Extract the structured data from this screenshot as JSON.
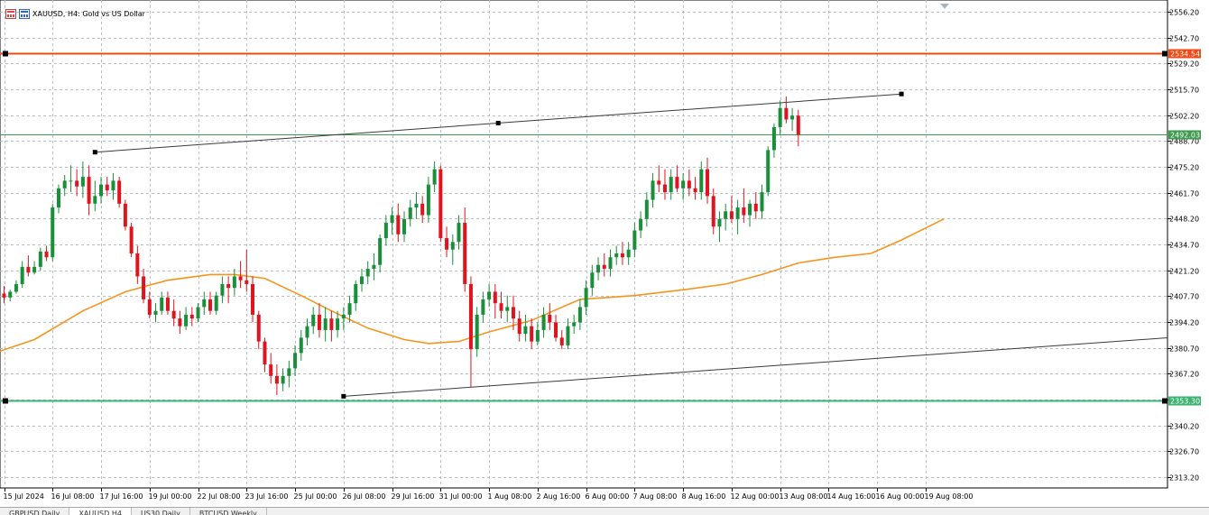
{
  "window": {
    "title": "XAUUSD, H4:  Gold vs US Dollar",
    "icons": [
      "chart-window-icon",
      "symbol-icon"
    ]
  },
  "tabs": [
    {
      "label": "GBPUSD,Daily",
      "active": false
    },
    {
      "label": "XAUUSD,H4",
      "active": true
    },
    {
      "label": "US30,Daily",
      "active": false
    },
    {
      "label": "BTCUSD,Weekly",
      "active": false
    }
  ],
  "chart_data": {
    "type": "candlestick",
    "symbol": "XAUUSD",
    "timeframe": "H4",
    "price_axis": {
      "ticks": [
        "2556.20",
        "2542.70",
        "2529.20",
        "2515.70",
        "2502.20",
        "2488.70",
        "2475.20",
        "2461.70",
        "2448.20",
        "2434.70",
        "2421.20",
        "2407.70",
        "2394.20",
        "2380.70",
        "2367.20",
        "2353.70",
        "2340.20",
        "2326.70",
        "2313.20"
      ],
      "range": [
        2307.5,
        2562.4
      ]
    },
    "time_axis": {
      "ticks": [
        "15 Jul 2024",
        "16 Jul 08:00",
        "17 Jul 16:00",
        "19 Jul 00:00",
        "22 Jul 08:00",
        "23 Jul 16:00",
        "25 Jul 00:00",
        "26 Jul 08:00",
        "29 Jul 16:00",
        "31 Jul 00:00",
        "1 Aug 08:00",
        "2 Aug 16:00",
        "6 Aug 00:00",
        "7 Aug 08:00",
        "8 Aug 16:00",
        "12 Aug 00:00",
        "13 Aug 08:00",
        "14 Aug 16:00",
        "16 Aug 00:00",
        "19 Aug 08:00"
      ],
      "bars_per_tick": 8
    },
    "grid": true,
    "colors": {
      "bull": "#1a8f3a",
      "bear": "#e0141e",
      "ma": "#f7941d",
      "resistance": "#f04a14",
      "support": "#3cb371",
      "trendline": "#3a3a3a",
      "bid_line": "#3f9a50"
    },
    "horizontal_lines": [
      {
        "name": "resistance",
        "price": 2534.54,
        "label": "2534.54"
      },
      {
        "name": "support",
        "price": 2353.3,
        "label": "2353.30"
      },
      {
        "name": "bid",
        "price": 2492.03,
        "label": "2492.03"
      }
    ],
    "trendlines": [
      {
        "name": "upper-channel",
        "points": [
          [
            15,
            2482.9
          ],
          [
            148,
            2513.3
          ]
        ]
      },
      {
        "name": "lower-channel",
        "points": [
          [
            56,
            2355.4
          ],
          [
            189,
            2385.3
          ]
        ]
      }
    ],
    "moving_average": {
      "name": "MA",
      "points": [
        [
          -3,
          2376.5
        ],
        [
          5,
          2385
        ],
        [
          13,
          2400
        ],
        [
          20,
          2410
        ],
        [
          27,
          2416
        ],
        [
          34,
          2419
        ],
        [
          38,
          2419
        ],
        [
          43,
          2417
        ],
        [
          49,
          2408
        ],
        [
          54,
          2400
        ],
        [
          60,
          2391
        ],
        [
          66,
          2385
        ],
        [
          70,
          2383
        ],
        [
          75,
          2384
        ],
        [
          80,
          2389
        ],
        [
          87,
          2395
        ],
        [
          95,
          2406
        ],
        [
          104,
          2408
        ],
        [
          112,
          2411
        ],
        [
          119,
          2414
        ],
        [
          125,
          2419
        ],
        [
          131,
          2425
        ],
        [
          137,
          2428
        ],
        [
          143,
          2430
        ],
        [
          148,
          2437
        ],
        [
          155,
          2448
        ]
      ]
    },
    "candles": [
      [
        2409,
        2413,
        2404,
        2407
      ],
      [
        2407,
        2411,
        2405,
        2410
      ],
      [
        2410,
        2416,
        2409,
        2414
      ],
      [
        2414,
        2426,
        2412,
        2423
      ],
      [
        2423,
        2429,
        2418,
        2420
      ],
      [
        2420,
        2426,
        2419,
        2423
      ],
      [
        2423,
        2433,
        2421,
        2431
      ],
      [
        2431,
        2434,
        2426,
        2428
      ],
      [
        2428,
        2456,
        2426,
        2454
      ],
      [
        2454,
        2466,
        2451,
        2464
      ],
      [
        2464,
        2471,
        2460,
        2468
      ],
      [
        2468,
        2476,
        2462,
        2468
      ],
      [
        2468,
        2474,
        2460,
        2465
      ],
      [
        2465,
        2478,
        2459,
        2470
      ],
      [
        2470,
        2476,
        2450,
        2456
      ],
      [
        2456,
        2468,
        2452,
        2460
      ],
      [
        2460,
        2470,
        2456,
        2466
      ],
      [
        2466,
        2470,
        2460,
        2463
      ],
      [
        2463,
        2472,
        2458,
        2468
      ],
      [
        2468,
        2470,
        2454,
        2456
      ],
      [
        2456,
        2458,
        2442,
        2444
      ],
      [
        2444,
        2446,
        2428,
        2430
      ],
      [
        2430,
        2434,
        2414,
        2418
      ],
      [
        2418,
        2422,
        2404,
        2406
      ],
      [
        2406,
        2410,
        2396,
        2398
      ],
      [
        2398,
        2404,
        2394,
        2400
      ],
      [
        2400,
        2410,
        2398,
        2407
      ],
      [
        2407,
        2410,
        2398,
        2400
      ],
      [
        2400,
        2406,
        2392,
        2396
      ],
      [
        2396,
        2400,
        2388,
        2392
      ],
      [
        2392,
        2402,
        2390,
        2398
      ],
      [
        2398,
        2402,
        2392,
        2396
      ],
      [
        2396,
        2404,
        2394,
        2402
      ],
      [
        2402,
        2410,
        2398,
        2406
      ],
      [
        2406,
        2410,
        2398,
        2400
      ],
      [
        2400,
        2410,
        2398,
        2408
      ],
      [
        2408,
        2418,
        2404,
        2414
      ],
      [
        2414,
        2418,
        2404,
        2412
      ],
      [
        2412,
        2422,
        2408,
        2418
      ],
      [
        2418,
        2426,
        2412,
        2416
      ],
      [
        2416,
        2432,
        2410,
        2414
      ],
      [
        2414,
        2418,
        2394,
        2398
      ],
      [
        2398,
        2400,
        2380,
        2384
      ],
      [
        2384,
        2386,
        2368,
        2372
      ],
      [
        2372,
        2378,
        2362,
        2366
      ],
      [
        2366,
        2372,
        2356,
        2362
      ],
      [
        2362,
        2370,
        2358,
        2366
      ],
      [
        2366,
        2374,
        2360,
        2370
      ],
      [
        2370,
        2382,
        2366,
        2378
      ],
      [
        2378,
        2390,
        2374,
        2386
      ],
      [
        2386,
        2396,
        2382,
        2392
      ],
      [
        2392,
        2402,
        2388,
        2398
      ],
      [
        2398,
        2404,
        2386,
        2390
      ],
      [
        2390,
        2402,
        2384,
        2396
      ],
      [
        2396,
        2400,
        2384,
        2390
      ],
      [
        2390,
        2400,
        2386,
        2396
      ],
      [
        2396,
        2402,
        2390,
        2398
      ],
      [
        2398,
        2408,
        2394,
        2404
      ],
      [
        2404,
        2416,
        2400,
        2414
      ],
      [
        2414,
        2422,
        2410,
        2418
      ],
      [
        2418,
        2426,
        2414,
        2422
      ],
      [
        2422,
        2430,
        2416,
        2424
      ],
      [
        2424,
        2440,
        2420,
        2438
      ],
      [
        2438,
        2450,
        2434,
        2446
      ],
      [
        2446,
        2454,
        2440,
        2450
      ],
      [
        2450,
        2456,
        2436,
        2440
      ],
      [
        2440,
        2452,
        2436,
        2448
      ],
      [
        2448,
        2458,
        2444,
        2454
      ],
      [
        2454,
        2462,
        2448,
        2456
      ],
      [
        2456,
        2460,
        2446,
        2450
      ],
      [
        2450,
        2470,
        2446,
        2466
      ],
      [
        2466,
        2478,
        2462,
        2474
      ],
      [
        2474,
        2476,
        2436,
        2438
      ],
      [
        2438,
        2444,
        2428,
        2432
      ],
      [
        2432,
        2440,
        2424,
        2436
      ],
      [
        2436,
        2450,
        2432,
        2446
      ],
      [
        2446,
        2454,
        2410,
        2414
      ],
      [
        2414,
        2418,
        2360,
        2380
      ],
      [
        2380,
        2402,
        2376,
        2398
      ],
      [
        2398,
        2410,
        2394,
        2406
      ],
      [
        2406,
        2414,
        2402,
        2410
      ],
      [
        2410,
        2414,
        2396,
        2404
      ],
      [
        2404,
        2410,
        2396,
        2400
      ],
      [
        2400,
        2408,
        2394,
        2402
      ],
      [
        2402,
        2408,
        2390,
        2396
      ],
      [
        2396,
        2400,
        2384,
        2388
      ],
      [
        2388,
        2398,
        2384,
        2392
      ],
      [
        2392,
        2396,
        2380,
        2384
      ],
      [
        2384,
        2394,
        2382,
        2390
      ],
      [
        2390,
        2402,
        2386,
        2398
      ],
      [
        2398,
        2404,
        2390,
        2394
      ],
      [
        2394,
        2398,
        2384,
        2386
      ],
      [
        2386,
        2390,
        2380,
        2382
      ],
      [
        2382,
        2396,
        2380,
        2392
      ],
      [
        2392,
        2398,
        2388,
        2394
      ],
      [
        2394,
        2406,
        2390,
        2402
      ],
      [
        2402,
        2416,
        2398,
        2412
      ],
      [
        2412,
        2424,
        2408,
        2420
      ],
      [
        2420,
        2428,
        2416,
        2424
      ],
      [
        2424,
        2430,
        2418,
        2422
      ],
      [
        2422,
        2432,
        2418,
        2428
      ],
      [
        2428,
        2434,
        2424,
        2430
      ],
      [
        2430,
        2436,
        2424,
        2428
      ],
      [
        2428,
        2436,
        2424,
        2432
      ],
      [
        2432,
        2446,
        2428,
        2442
      ],
      [
        2442,
        2452,
        2438,
        2448
      ],
      [
        2448,
        2462,
        2444,
        2458
      ],
      [
        2458,
        2472,
        2454,
        2468
      ],
      [
        2468,
        2476,
        2462,
        2466
      ],
      [
        2466,
        2474,
        2458,
        2462
      ],
      [
        2462,
        2474,
        2458,
        2470
      ],
      [
        2470,
        2476,
        2462,
        2464
      ],
      [
        2464,
        2472,
        2458,
        2468
      ],
      [
        2468,
        2474,
        2460,
        2464
      ],
      [
        2464,
        2470,
        2458,
        2462
      ],
      [
        2462,
        2478,
        2458,
        2474
      ],
      [
        2474,
        2480,
        2456,
        2460
      ],
      [
        2460,
        2464,
        2440,
        2444
      ],
      [
        2444,
        2452,
        2436,
        2448
      ],
      [
        2448,
        2456,
        2442,
        2452
      ],
      [
        2452,
        2460,
        2446,
        2448
      ],
      [
        2448,
        2458,
        2440,
        2454
      ],
      [
        2454,
        2464,
        2446,
        2450
      ],
      [
        2450,
        2458,
        2444,
        2456
      ],
      [
        2456,
        2462,
        2448,
        2452
      ],
      [
        2452,
        2466,
        2448,
        2462
      ],
      [
        2462,
        2486,
        2460,
        2484
      ],
      [
        2484,
        2498,
        2480,
        2496
      ],
      [
        2496,
        2510,
        2492,
        2506
      ],
      [
        2506,
        2512,
        2498,
        2500
      ],
      [
        2500,
        2506,
        2494,
        2502
      ],
      [
        2502,
        2505,
        2486,
        2492
      ]
    ]
  }
}
